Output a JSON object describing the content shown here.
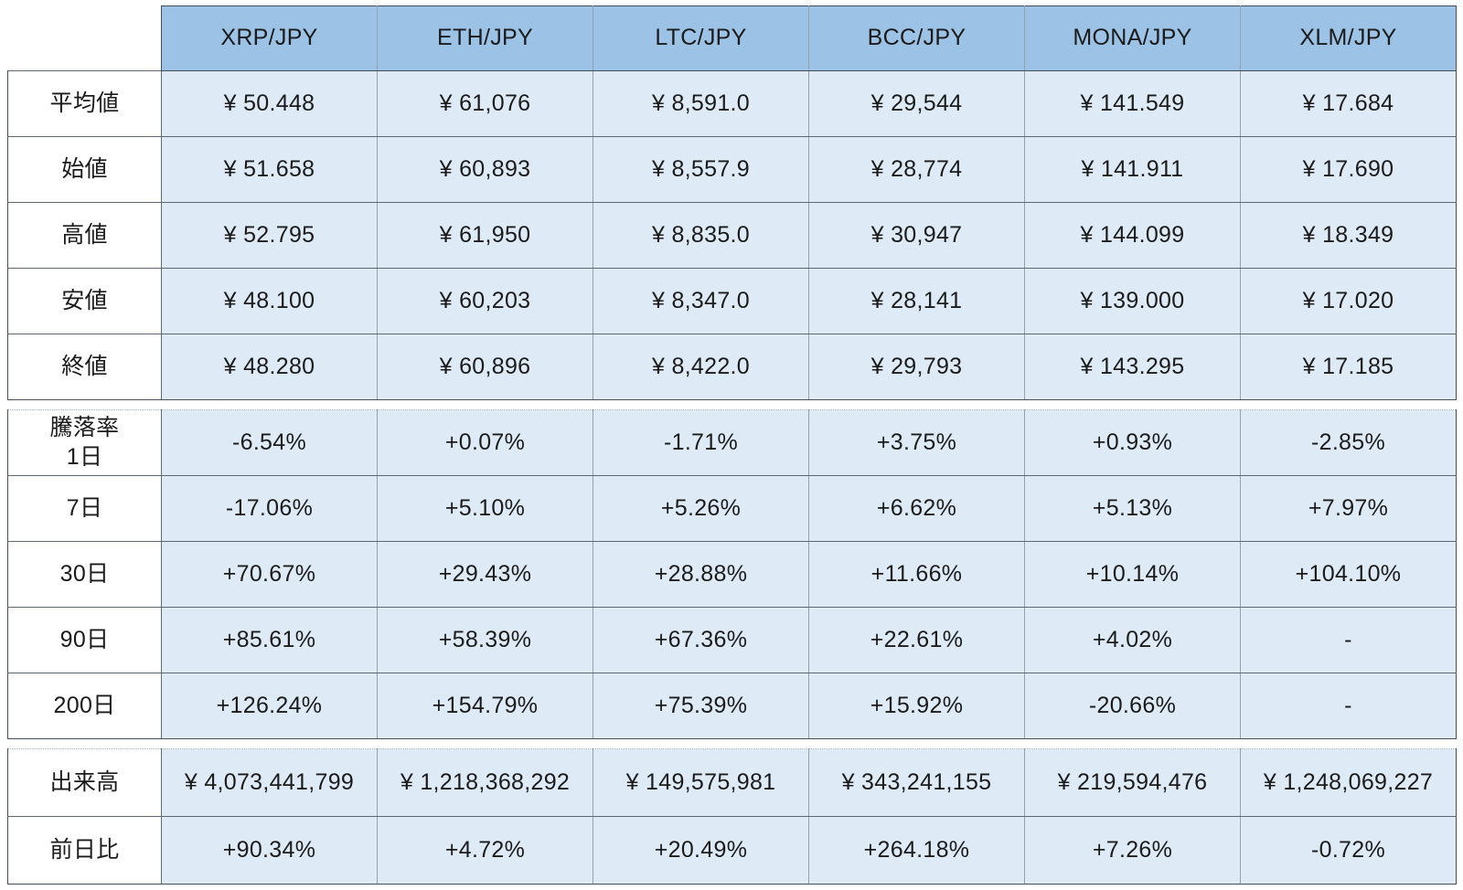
{
  "theme": {
    "header_bg": "#9CC3E6",
    "cell_bg": "#DEEBF7",
    "text_color": "#1B1B1B",
    "border_h": "#5D6872",
    "border_v": "#95A2AC",
    "border_dark": "#434E58"
  },
  "columns": [
    "XRP/JPY",
    "ETH/JPY",
    "LTC/JPY",
    "BCC/JPY",
    "MONA/JPY",
    "XLM/JPY"
  ],
  "sections": [
    {
      "id": "price-table",
      "name": "price-section",
      "rows": [
        {
          "label": "平均値",
          "values": [
            "¥ 50.448",
            "¥ 61,076",
            "¥ 8,591.0",
            "¥ 29,544",
            "¥ 141.549",
            "¥ 17.684"
          ]
        },
        {
          "label": "始値",
          "values": [
            "¥ 51.658",
            "¥ 60,893",
            "¥ 8,557.9",
            "¥ 28,774",
            "¥ 141.911",
            "¥ 17.690"
          ]
        },
        {
          "label": "高値",
          "values": [
            "¥ 52.795",
            "¥ 61,950",
            "¥ 8,835.0",
            "¥ 30,947",
            "¥ 144.099",
            "¥ 18.349"
          ]
        },
        {
          "label": "安値",
          "values": [
            "¥ 48.100",
            "¥ 60,203",
            "¥ 8,347.0",
            "¥ 28,141",
            "¥ 139.000",
            "¥ 17.020"
          ]
        },
        {
          "label": "終値",
          "values": [
            "¥ 48.280",
            "¥ 60,896",
            "¥ 8,422.0",
            "¥ 29,793",
            "¥ 143.295",
            "¥ 17.185"
          ]
        }
      ]
    },
    {
      "id": "change-table",
      "name": "change-rate-section",
      "rows": [
        {
          "label": "騰落率\n1日",
          "values": [
            "-6.54%",
            "+0.07%",
            "-1.71%",
            "+3.75%",
            "+0.93%",
            "-2.85%"
          ]
        },
        {
          "label": "7日",
          "values": [
            "-17.06%",
            "+5.10%",
            "+5.26%",
            "+6.62%",
            "+5.13%",
            "+7.97%"
          ]
        },
        {
          "label": "30日",
          "values": [
            "+70.67%",
            "+29.43%",
            "+28.88%",
            "+11.66%",
            "+10.14%",
            "+104.10%"
          ]
        },
        {
          "label": "90日",
          "values": [
            "+85.61%",
            "+58.39%",
            "+67.36%",
            "+22.61%",
            "+4.02%",
            "-"
          ]
        },
        {
          "label": "200日",
          "values": [
            "+126.24%",
            "+154.79%",
            "+75.39%",
            "+15.92%",
            "-20.66%",
            "-"
          ]
        }
      ]
    },
    {
      "id": "volume-table",
      "name": "volume-section",
      "rows": [
        {
          "label": "出来高",
          "values": [
            "¥ 4,073,441,799",
            "¥ 1,218,368,292",
            "¥ 149,575,981",
            "¥ 343,241,155",
            "¥ 219,594,476",
            "¥ 1,248,069,227"
          ]
        },
        {
          "label": "前日比",
          "values": [
            "+90.34%",
            "+4.72%",
            "+20.49%",
            "+264.18%",
            "+7.26%",
            "-0.72%"
          ]
        }
      ]
    }
  ]
}
